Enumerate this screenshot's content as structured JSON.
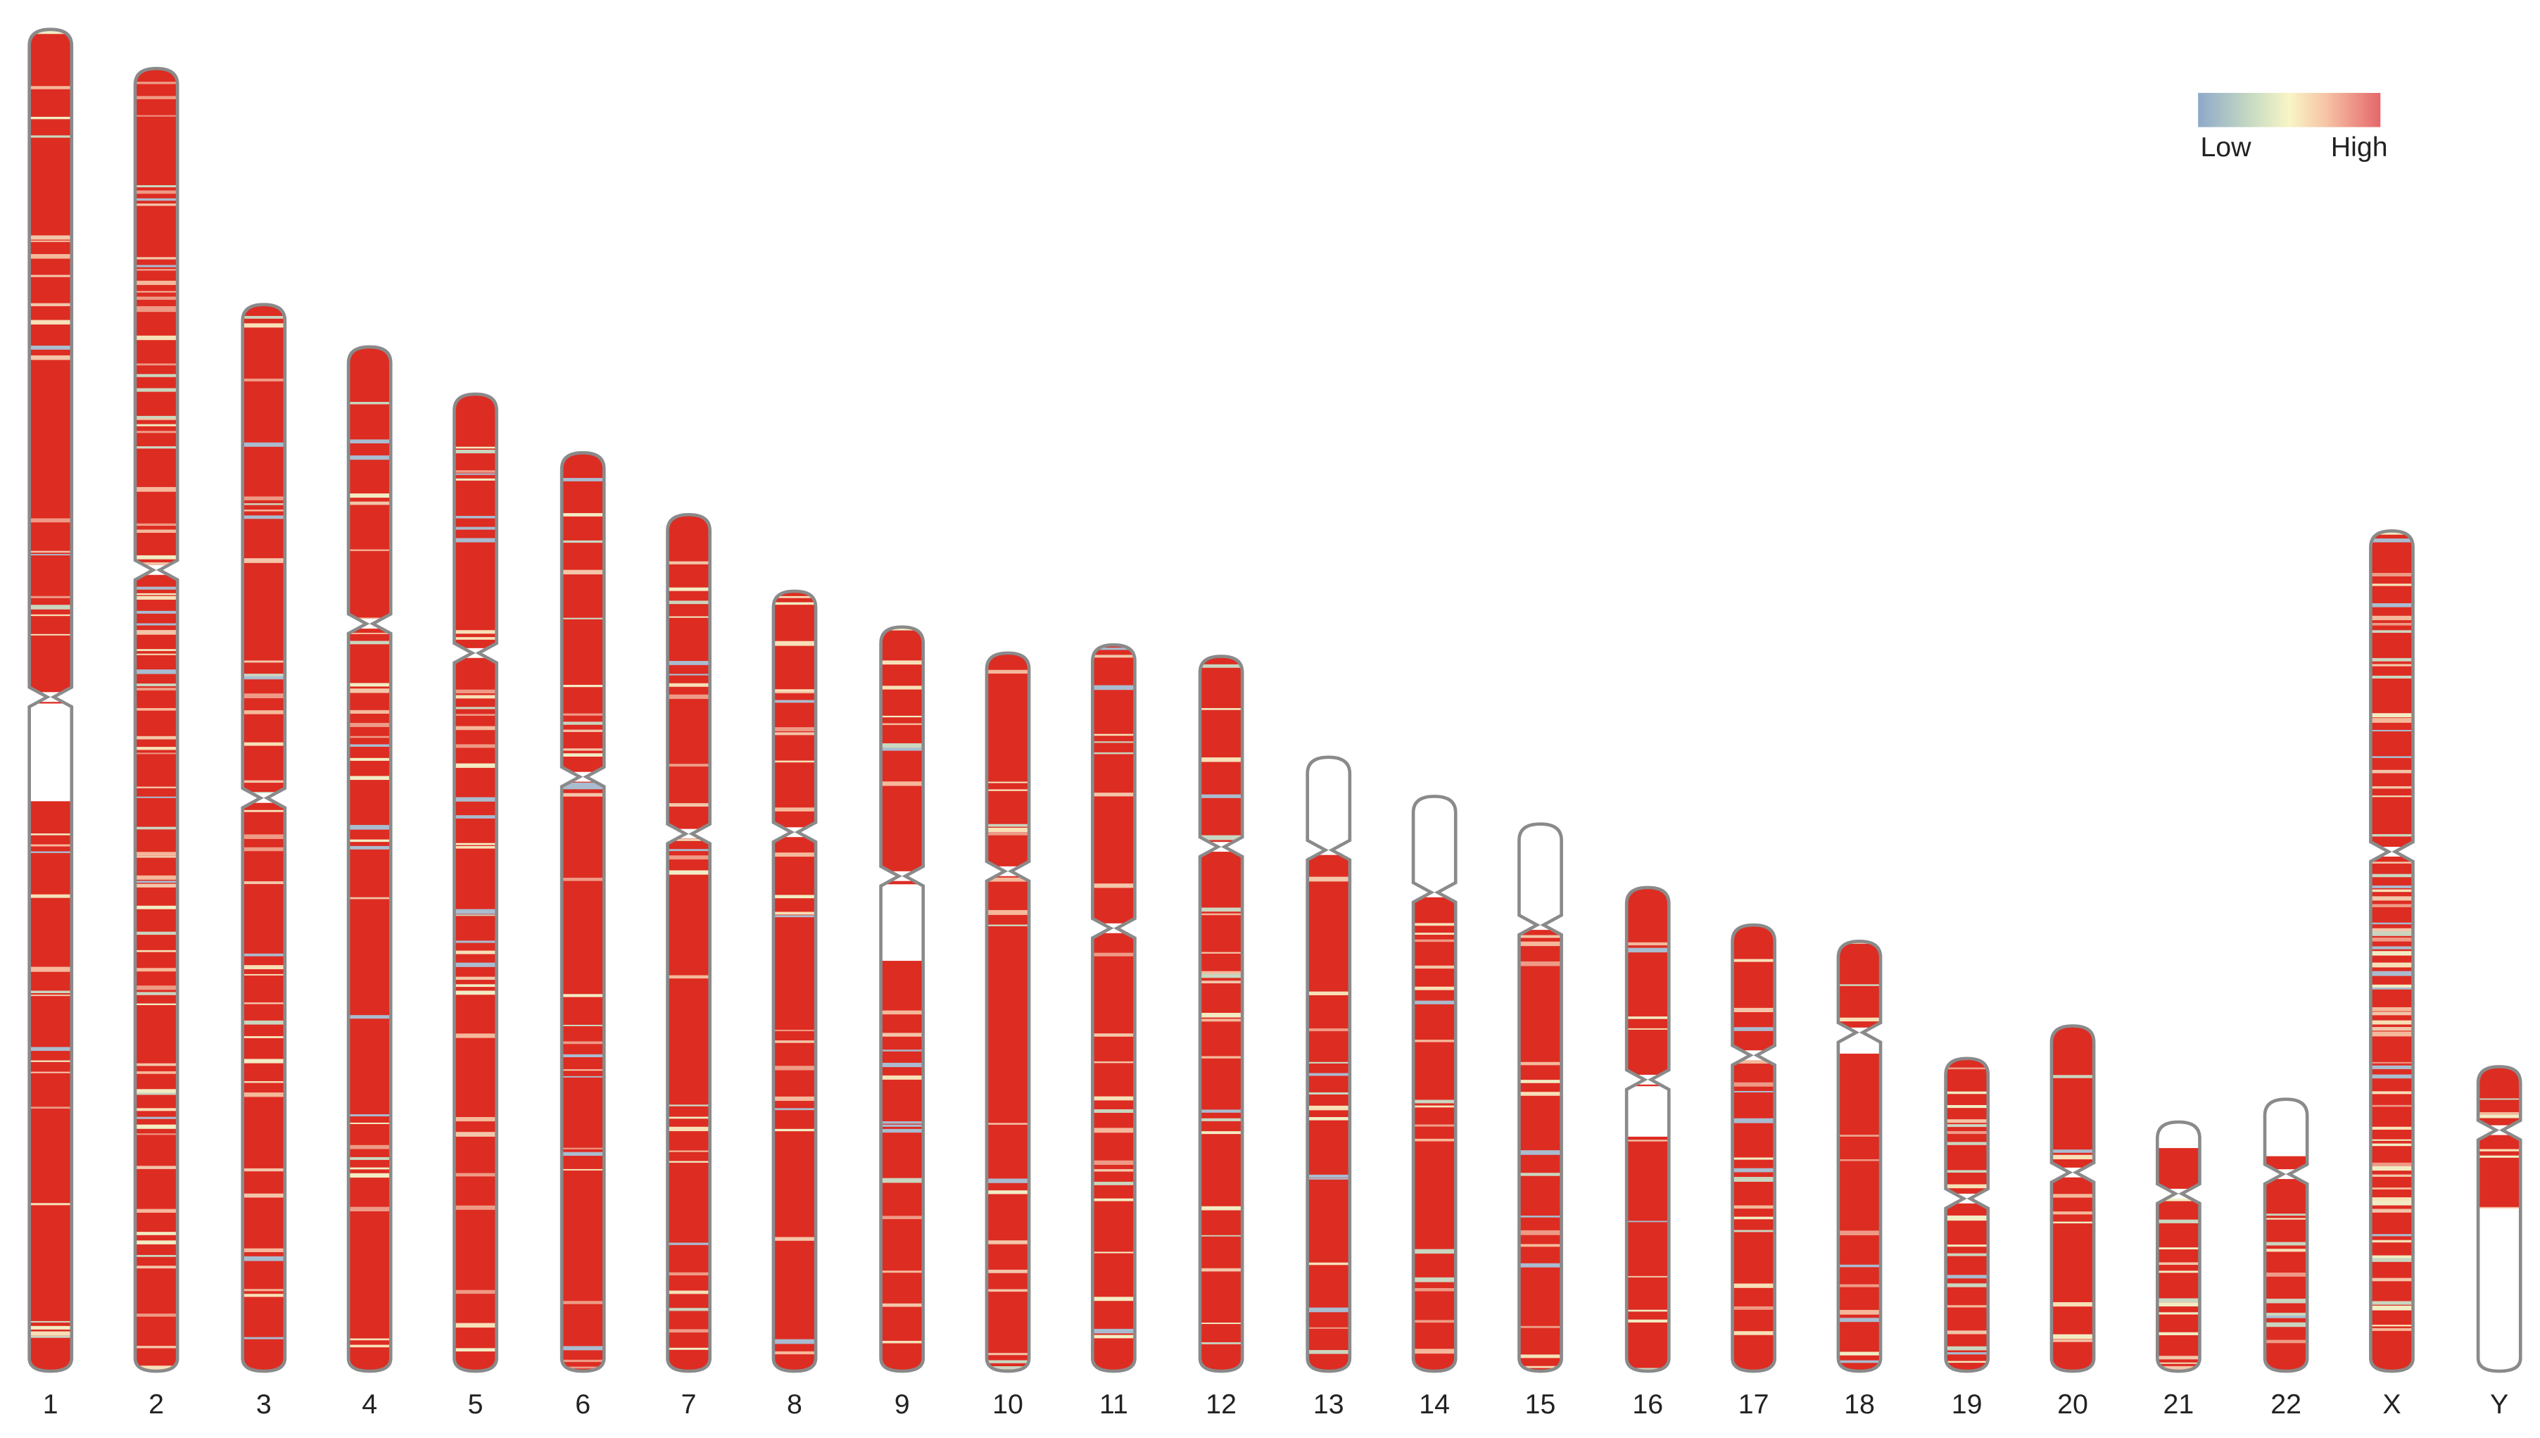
{
  "chromosomes": [
    "1",
    "2",
    "3",
    "4",
    "5",
    "6",
    "7",
    "8",
    "9",
    "10",
    "11",
    "12",
    "13",
    "14",
    "15",
    "16",
    "17",
    "18",
    "19",
    "20",
    "21",
    "22",
    "X",
    "Y"
  ],
  "legend": {
    "low": "Low",
    "high": "High"
  }
}
